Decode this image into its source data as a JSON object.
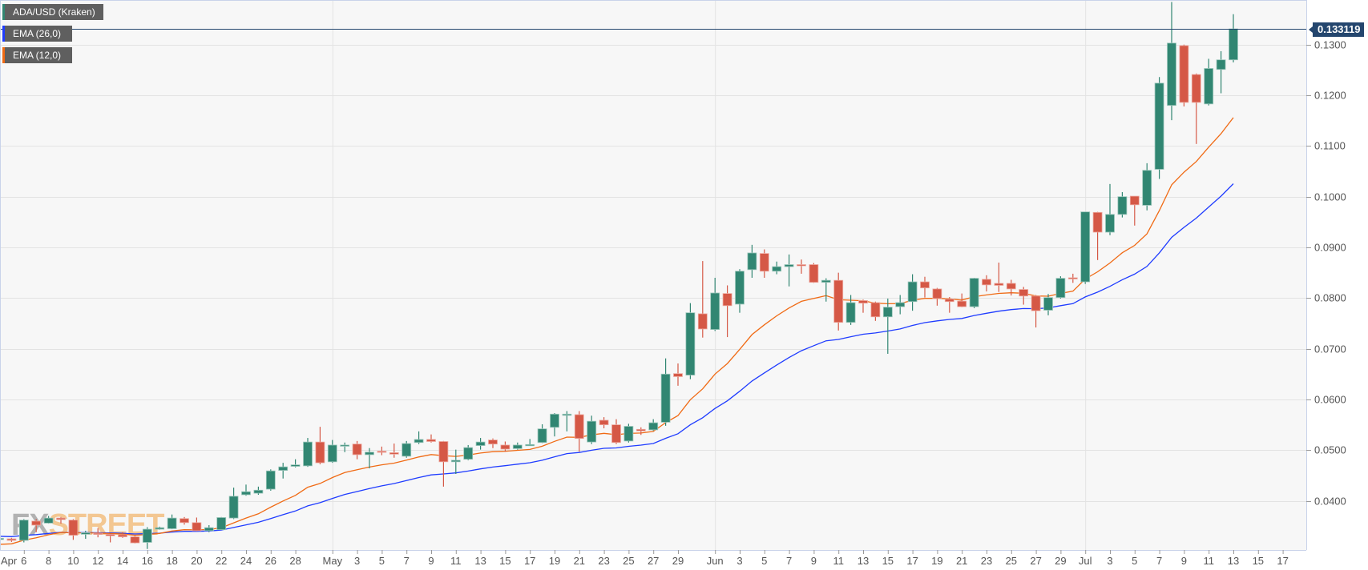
{
  "legend": [
    {
      "label": "ADA/USD (Kraken)",
      "color": "#318672"
    },
    {
      "label": "EMA (26,0)",
      "color": "#1f3cff"
    },
    {
      "label": "EMA (12,0)",
      "color": "#f06a14"
    }
  ],
  "last_price_label": "0.133119",
  "watermark": {
    "part1": "FX",
    "part2": "STREET"
  },
  "colors": {
    "up": "#318672",
    "down": "#d55846",
    "ema26": "#1f3cff",
    "ema12": "#f06a14",
    "last_price": "#24466e",
    "grid": "#e3e3e3",
    "background": "#f7f7f7"
  },
  "chart_data": {
    "type": "candlestick",
    "title": "",
    "xlabel": "",
    "ylabel": "",
    "ylim": [
      0.0303,
      0.1388
    ],
    "xlim": [
      "Apr 4",
      "Jul 18"
    ],
    "grid": {
      "horizontal": true,
      "vertical": "month starts"
    },
    "last_price": 0.133119,
    "y_ticks": [
      "0.0400",
      "0.0500",
      "0.0600",
      "0.0700",
      "0.0800",
      "0.0900",
      "0.1000",
      "0.1100",
      "0.1200",
      "0.1300"
    ],
    "x_ticks": [
      {
        "label": "Apr",
        "date": "Apr 4"
      },
      {
        "label": "6",
        "date": "Apr 6"
      },
      {
        "label": "8",
        "date": "Apr 8"
      },
      {
        "label": "10",
        "date": "Apr 10"
      },
      {
        "label": "12",
        "date": "Apr 12"
      },
      {
        "label": "14",
        "date": "Apr 14"
      },
      {
        "label": "16",
        "date": "Apr 16"
      },
      {
        "label": "18",
        "date": "Apr 18"
      },
      {
        "label": "20",
        "date": "Apr 20"
      },
      {
        "label": "22",
        "date": "Apr 22"
      },
      {
        "label": "24",
        "date": "Apr 24"
      },
      {
        "label": "26",
        "date": "Apr 26"
      },
      {
        "label": "28",
        "date": "Apr 28"
      },
      {
        "label": "May",
        "date": "May 1"
      },
      {
        "label": "3",
        "date": "May 3"
      },
      {
        "label": "5",
        "date": "May 5"
      },
      {
        "label": "7",
        "date": "May 7"
      },
      {
        "label": "9",
        "date": "May 9"
      },
      {
        "label": "11",
        "date": "May 11"
      },
      {
        "label": "13",
        "date": "May 13"
      },
      {
        "label": "15",
        "date": "May 15"
      },
      {
        "label": "17",
        "date": "May 17"
      },
      {
        "label": "19",
        "date": "May 19"
      },
      {
        "label": "21",
        "date": "May 21"
      },
      {
        "label": "23",
        "date": "May 23"
      },
      {
        "label": "25",
        "date": "May 25"
      },
      {
        "label": "27",
        "date": "May 27"
      },
      {
        "label": "29",
        "date": "May 29"
      },
      {
        "label": "Jun",
        "date": "Jun 1"
      },
      {
        "label": "3",
        "date": "Jun 3"
      },
      {
        "label": "5",
        "date": "Jun 5"
      },
      {
        "label": "7",
        "date": "Jun 7"
      },
      {
        "label": "9",
        "date": "Jun 9"
      },
      {
        "label": "11",
        "date": "Jun 11"
      },
      {
        "label": "13",
        "date": "Jun 13"
      },
      {
        "label": "15",
        "date": "Jun 15"
      },
      {
        "label": "17",
        "date": "Jun 17"
      },
      {
        "label": "19",
        "date": "Jun 19"
      },
      {
        "label": "21",
        "date": "Jun 21"
      },
      {
        "label": "23",
        "date": "Jun 23"
      },
      {
        "label": "25",
        "date": "Jun 25"
      },
      {
        "label": "27",
        "date": "Jun 27"
      },
      {
        "label": "29",
        "date": "Jun 29"
      },
      {
        "label": "Jul",
        "date": "Jul 1"
      },
      {
        "label": "3",
        "date": "Jul 3"
      },
      {
        "label": "5",
        "date": "Jul 5"
      },
      {
        "label": "7",
        "date": "Jul 7"
      },
      {
        "label": "9",
        "date": "Jul 9"
      },
      {
        "label": "11",
        "date": "Jul 11"
      },
      {
        "label": "13",
        "date": "Jul 13"
      },
      {
        "label": "15",
        "date": "Jul 15"
      },
      {
        "label": "17",
        "date": "Jul 17"
      }
    ],
    "series_ema": [
      {
        "name": "EMA (26,0)",
        "period": 26,
        "start": 0.033
      },
      {
        "name": "EMA (12,0)",
        "period": 12,
        "start": 0.0314
      }
    ],
    "candle_fields": [
      "date",
      "open",
      "high",
      "low",
      "close"
    ],
    "candles": [
      [
        "Apr 4",
        0.0324,
        0.0327,
        0.0321,
        0.0326
      ],
      [
        "Apr 5",
        0.0325,
        0.0327,
        0.0319,
        0.0322
      ],
      [
        "Apr 6",
        0.0322,
        0.0364,
        0.0318,
        0.0362
      ],
      [
        "Apr 7",
        0.036,
        0.0364,
        0.0338,
        0.0352
      ],
      [
        "Apr 8",
        0.0356,
        0.037,
        0.0355,
        0.0366
      ],
      [
        "Apr 9",
        0.0366,
        0.0368,
        0.0355,
        0.0363
      ],
      [
        "Apr 10",
        0.0362,
        0.0364,
        0.0323,
        0.0332
      ],
      [
        "Apr 11",
        0.0334,
        0.0341,
        0.0325,
        0.0337
      ],
      [
        "Apr 12",
        0.0336,
        0.0346,
        0.0328,
        0.0334
      ],
      [
        "Apr 13",
        0.0334,
        0.0336,
        0.0318,
        0.0331
      ],
      [
        "Apr 14",
        0.0333,
        0.0338,
        0.0327,
        0.0329
      ],
      [
        "Apr 15",
        0.0329,
        0.0331,
        0.0316,
        0.0317
      ],
      [
        "Apr 16",
        0.0318,
        0.0348,
        0.0305,
        0.0344
      ],
      [
        "Apr 17",
        0.0344,
        0.0349,
        0.0343,
        0.0347
      ],
      [
        "Apr 18",
        0.0345,
        0.0373,
        0.0344,
        0.0366
      ],
      [
        "Apr 19",
        0.0365,
        0.0368,
        0.0353,
        0.0357
      ],
      [
        "Apr 20",
        0.0357,
        0.0367,
        0.034,
        0.0341
      ],
      [
        "Apr 21",
        0.0341,
        0.0352,
        0.0338,
        0.0347
      ],
      [
        "Apr 22",
        0.0343,
        0.0368,
        0.0343,
        0.0367
      ],
      [
        "Apr 23",
        0.0366,
        0.0426,
        0.0364,
        0.0409
      ],
      [
        "Apr 24",
        0.0412,
        0.0432,
        0.041,
        0.0418
      ],
      [
        "Apr 25",
        0.0415,
        0.0428,
        0.0412,
        0.0421
      ],
      [
        "Apr 26",
        0.0423,
        0.0462,
        0.042,
        0.0459
      ],
      [
        "Apr 27",
        0.046,
        0.0475,
        0.0444,
        0.0467
      ],
      [
        "Apr 28",
        0.0468,
        0.0482,
        0.0466,
        0.0471
      ],
      [
        "Apr 29",
        0.0469,
        0.0524,
        0.0467,
        0.0516
      ],
      [
        "Apr 30",
        0.0516,
        0.0546,
        0.0472,
        0.0475
      ],
      [
        "May 1",
        0.0477,
        0.052,
        0.0475,
        0.051
      ],
      [
        "May 2",
        0.0509,
        0.0515,
        0.0496,
        0.051
      ],
      [
        "May 3",
        0.0512,
        0.0518,
        0.0482,
        0.0491
      ],
      [
        "May 4",
        0.0491,
        0.0504,
        0.0464,
        0.0496
      ],
      [
        "May 5",
        0.0498,
        0.0507,
        0.049,
        0.0496
      ],
      [
        "May 6",
        0.0495,
        0.0513,
        0.0485,
        0.0492
      ],
      [
        "May 7",
        0.0488,
        0.0518,
        0.0485,
        0.0513
      ],
      [
        "May 8",
        0.0515,
        0.0537,
        0.0512,
        0.0521
      ],
      [
        "May 9",
        0.0521,
        0.0531,
        0.0515,
        0.0517
      ],
      [
        "May 10",
        0.0517,
        0.0518,
        0.0428,
        0.0477
      ],
      [
        "May 11",
        0.0477,
        0.0501,
        0.0453,
        0.048
      ],
      [
        "May 12",
        0.0482,
        0.051,
        0.048,
        0.0505
      ],
      [
        "May 13",
        0.0509,
        0.0524,
        0.0501,
        0.0516
      ],
      [
        "May 14",
        0.052,
        0.0523,
        0.0504,
        0.0512
      ],
      [
        "May 15",
        0.051,
        0.0517,
        0.0497,
        0.0502
      ],
      [
        "May 16",
        0.0503,
        0.0515,
        0.0501,
        0.051
      ],
      [
        "May 17",
        0.0509,
        0.0522,
        0.0509,
        0.0511
      ],
      [
        "May 18",
        0.0515,
        0.0551,
        0.0514,
        0.0542
      ],
      [
        "May 19",
        0.0545,
        0.0573,
        0.0527,
        0.0571
      ],
      [
        "May 20",
        0.057,
        0.0577,
        0.0537,
        0.0571
      ],
      [
        "May 21",
        0.057,
        0.0577,
        0.0497,
        0.0523
      ],
      [
        "May 22",
        0.0516,
        0.0568,
        0.0512,
        0.0557
      ],
      [
        "May 23",
        0.0559,
        0.0565,
        0.0543,
        0.055
      ],
      [
        "May 24",
        0.055,
        0.0561,
        0.0512,
        0.0515
      ],
      [
        "May 25",
        0.0518,
        0.0552,
        0.0515,
        0.0547
      ],
      [
        "May 26",
        0.0541,
        0.0545,
        0.053,
        0.0538
      ],
      [
        "May 27",
        0.054,
        0.0561,
        0.0538,
        0.0554
      ],
      [
        "May 28",
        0.0555,
        0.0681,
        0.0548,
        0.065
      ],
      [
        "May 29",
        0.0651,
        0.0671,
        0.0627,
        0.0645
      ],
      [
        "May 30",
        0.0648,
        0.079,
        0.064,
        0.0771
      ],
      [
        "May 31",
        0.0769,
        0.0873,
        0.0722,
        0.0739
      ],
      [
        "Jun 1",
        0.0738,
        0.084,
        0.0735,
        0.081
      ],
      [
        "Jun 2",
        0.0809,
        0.0825,
        0.0723,
        0.0785
      ],
      [
        "Jun 3",
        0.0788,
        0.0857,
        0.0771,
        0.0853
      ],
      [
        "Jun 4",
        0.0856,
        0.0905,
        0.084,
        0.0889
      ],
      [
        "Jun 5",
        0.0888,
        0.0896,
        0.084,
        0.0853
      ],
      [
        "Jun 6",
        0.0853,
        0.0872,
        0.0847,
        0.0862
      ],
      [
        "Jun 7",
        0.0862,
        0.0886,
        0.0823,
        0.0866
      ],
      [
        "Jun 8",
        0.0866,
        0.0876,
        0.0848,
        0.0865
      ],
      [
        "Jun 9",
        0.0866,
        0.0869,
        0.083,
        0.0831
      ],
      [
        "Jun 10",
        0.0831,
        0.0839,
        0.0793,
        0.0835
      ],
      [
        "Jun 11",
        0.0835,
        0.085,
        0.0736,
        0.0752
      ],
      [
        "Jun 12",
        0.0752,
        0.0806,
        0.0747,
        0.0791
      ],
      [
        "Jun 13",
        0.0795,
        0.0797,
        0.0771,
        0.079
      ],
      [
        "Jun 14",
        0.0791,
        0.0793,
        0.0755,
        0.0763
      ],
      [
        "Jun 15",
        0.0763,
        0.0799,
        0.069,
        0.0782
      ],
      [
        "Jun 16",
        0.0783,
        0.0806,
        0.0768,
        0.0791
      ],
      [
        "Jun 17",
        0.0793,
        0.0847,
        0.0775,
        0.0832
      ],
      [
        "Jun 18",
        0.0832,
        0.0842,
        0.0801,
        0.082
      ],
      [
        "Jun 19",
        0.0818,
        0.082,
        0.0785,
        0.0799
      ],
      [
        "Jun 20",
        0.0798,
        0.0802,
        0.0771,
        0.0793
      ],
      [
        "Jun 21",
        0.0794,
        0.0809,
        0.0782,
        0.0783
      ],
      [
        "Jun 22",
        0.0783,
        0.084,
        0.078,
        0.0839
      ],
      [
        "Jun 23",
        0.0837,
        0.0845,
        0.0813,
        0.0826
      ],
      [
        "Jun 24",
        0.0829,
        0.087,
        0.0812,
        0.0825
      ],
      [
        "Jun 25",
        0.0829,
        0.0836,
        0.0805,
        0.0818
      ],
      [
        "Jun 26",
        0.0817,
        0.0822,
        0.0787,
        0.0804
      ],
      [
        "Jun 27",
        0.0804,
        0.0806,
        0.0742,
        0.0775
      ],
      [
        "Jun 28",
        0.0776,
        0.0808,
        0.0766,
        0.0801
      ],
      [
        "Jun 29",
        0.0801,
        0.0843,
        0.0799,
        0.0839
      ],
      [
        "Jun 30",
        0.084,
        0.0848,
        0.083,
        0.0838
      ],
      [
        "Jul 1",
        0.0832,
        0.097,
        0.0828,
        0.097
      ],
      [
        "Jul 2",
        0.0969,
        0.097,
        0.0875,
        0.093
      ],
      [
        "Jul 3",
        0.093,
        0.1025,
        0.0924,
        0.0965
      ],
      [
        "Jul 4",
        0.0965,
        0.1009,
        0.0959,
        0.1
      ],
      [
        "Jul 5",
        0.1001,
        0.1001,
        0.0943,
        0.0984
      ],
      [
        "Jul 6",
        0.0983,
        0.1066,
        0.0973,
        0.1052
      ],
      [
        "Jul 7",
        0.1054,
        0.1236,
        0.1035,
        0.1224
      ],
      [
        "Jul 8",
        0.118,
        0.1384,
        0.1151,
        0.1303
      ],
      [
        "Jul 9",
        0.1298,
        0.13,
        0.1178,
        0.1186
      ],
      [
        "Jul 10",
        0.1241,
        0.1243,
        0.1104,
        0.1186
      ],
      [
        "Jul 11",
        0.1183,
        0.1272,
        0.118,
        0.1253
      ],
      [
        "Jul 12",
        0.1251,
        0.1287,
        0.1204,
        0.127
      ],
      [
        "Jul 13",
        0.127,
        0.136,
        0.1265,
        0.1331
      ]
    ]
  }
}
